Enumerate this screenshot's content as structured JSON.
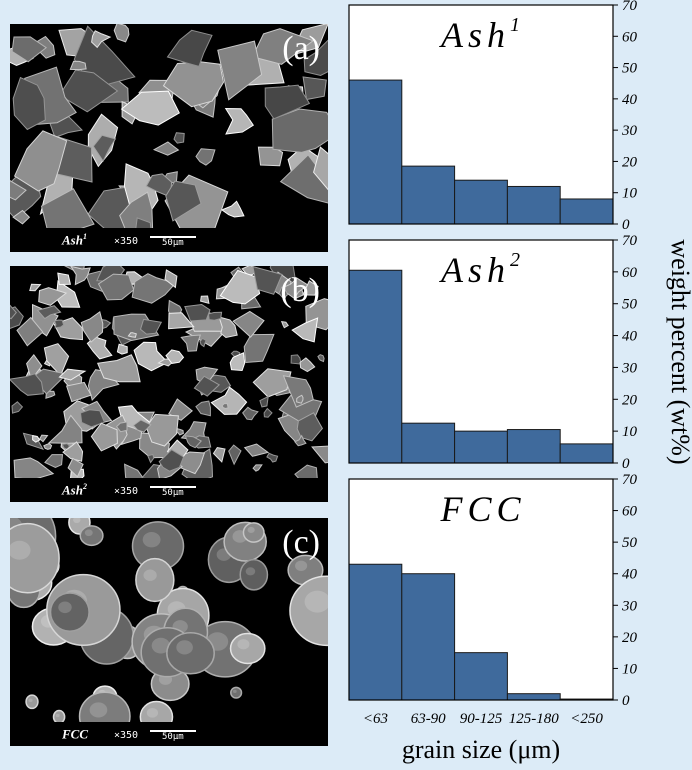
{
  "sem_panels": [
    {
      "letter": "(a)",
      "sample": "Ash",
      "sample_sup": "1",
      "magnification": "×350",
      "scale_bar": "50μm"
    },
    {
      "letter": "(b)",
      "sample": "Ash",
      "sample_sup": "2",
      "magnification": "×350",
      "scale_bar": "50μm"
    },
    {
      "letter": "(c)",
      "sample": "FCC",
      "sample_sup": "",
      "magnification": "×350",
      "scale_bar": "50μm"
    }
  ],
  "chart_data": [
    {
      "type": "bar",
      "title": "Ash",
      "title_sup": "1",
      "categories": [
        "<63",
        "63-90",
        "90-125",
        "125-180",
        "<250"
      ],
      "values": [
        46,
        18.5,
        14,
        12,
        8
      ],
      "ylim": [
        0,
        70
      ],
      "yticks": [
        0,
        10,
        20,
        30,
        40,
        50,
        60,
        70
      ],
      "bar_color": "#3f6a9c"
    },
    {
      "type": "bar",
      "title": "Ash",
      "title_sup": "2",
      "categories": [
        "<63",
        "63-90",
        "90-125",
        "125-180",
        "<250"
      ],
      "values": [
        60.5,
        12.5,
        10,
        10.5,
        6
      ],
      "ylim": [
        0,
        70
      ],
      "yticks": [
        0,
        10,
        20,
        30,
        40,
        50,
        60,
        70
      ],
      "bar_color": "#3f6a9c"
    },
    {
      "type": "bar",
      "title": "FCC",
      "title_sup": "",
      "categories": [
        "<63",
        "63-90",
        "90-125",
        "125-180",
        "<250"
      ],
      "values": [
        43,
        40,
        15,
        2,
        0.3
      ],
      "ylim": [
        0,
        70
      ],
      "yticks": [
        0,
        10,
        20,
        30,
        40,
        50,
        60,
        70
      ],
      "bar_color": "#3f6a9c"
    }
  ],
  "axes": {
    "xlabel": "grain size (μm)",
    "ylabel": "weight percent (wt%)",
    "x_tick_labels": [
      "<63",
      "63-90",
      "90-125",
      "125-180",
      "<250"
    ]
  }
}
